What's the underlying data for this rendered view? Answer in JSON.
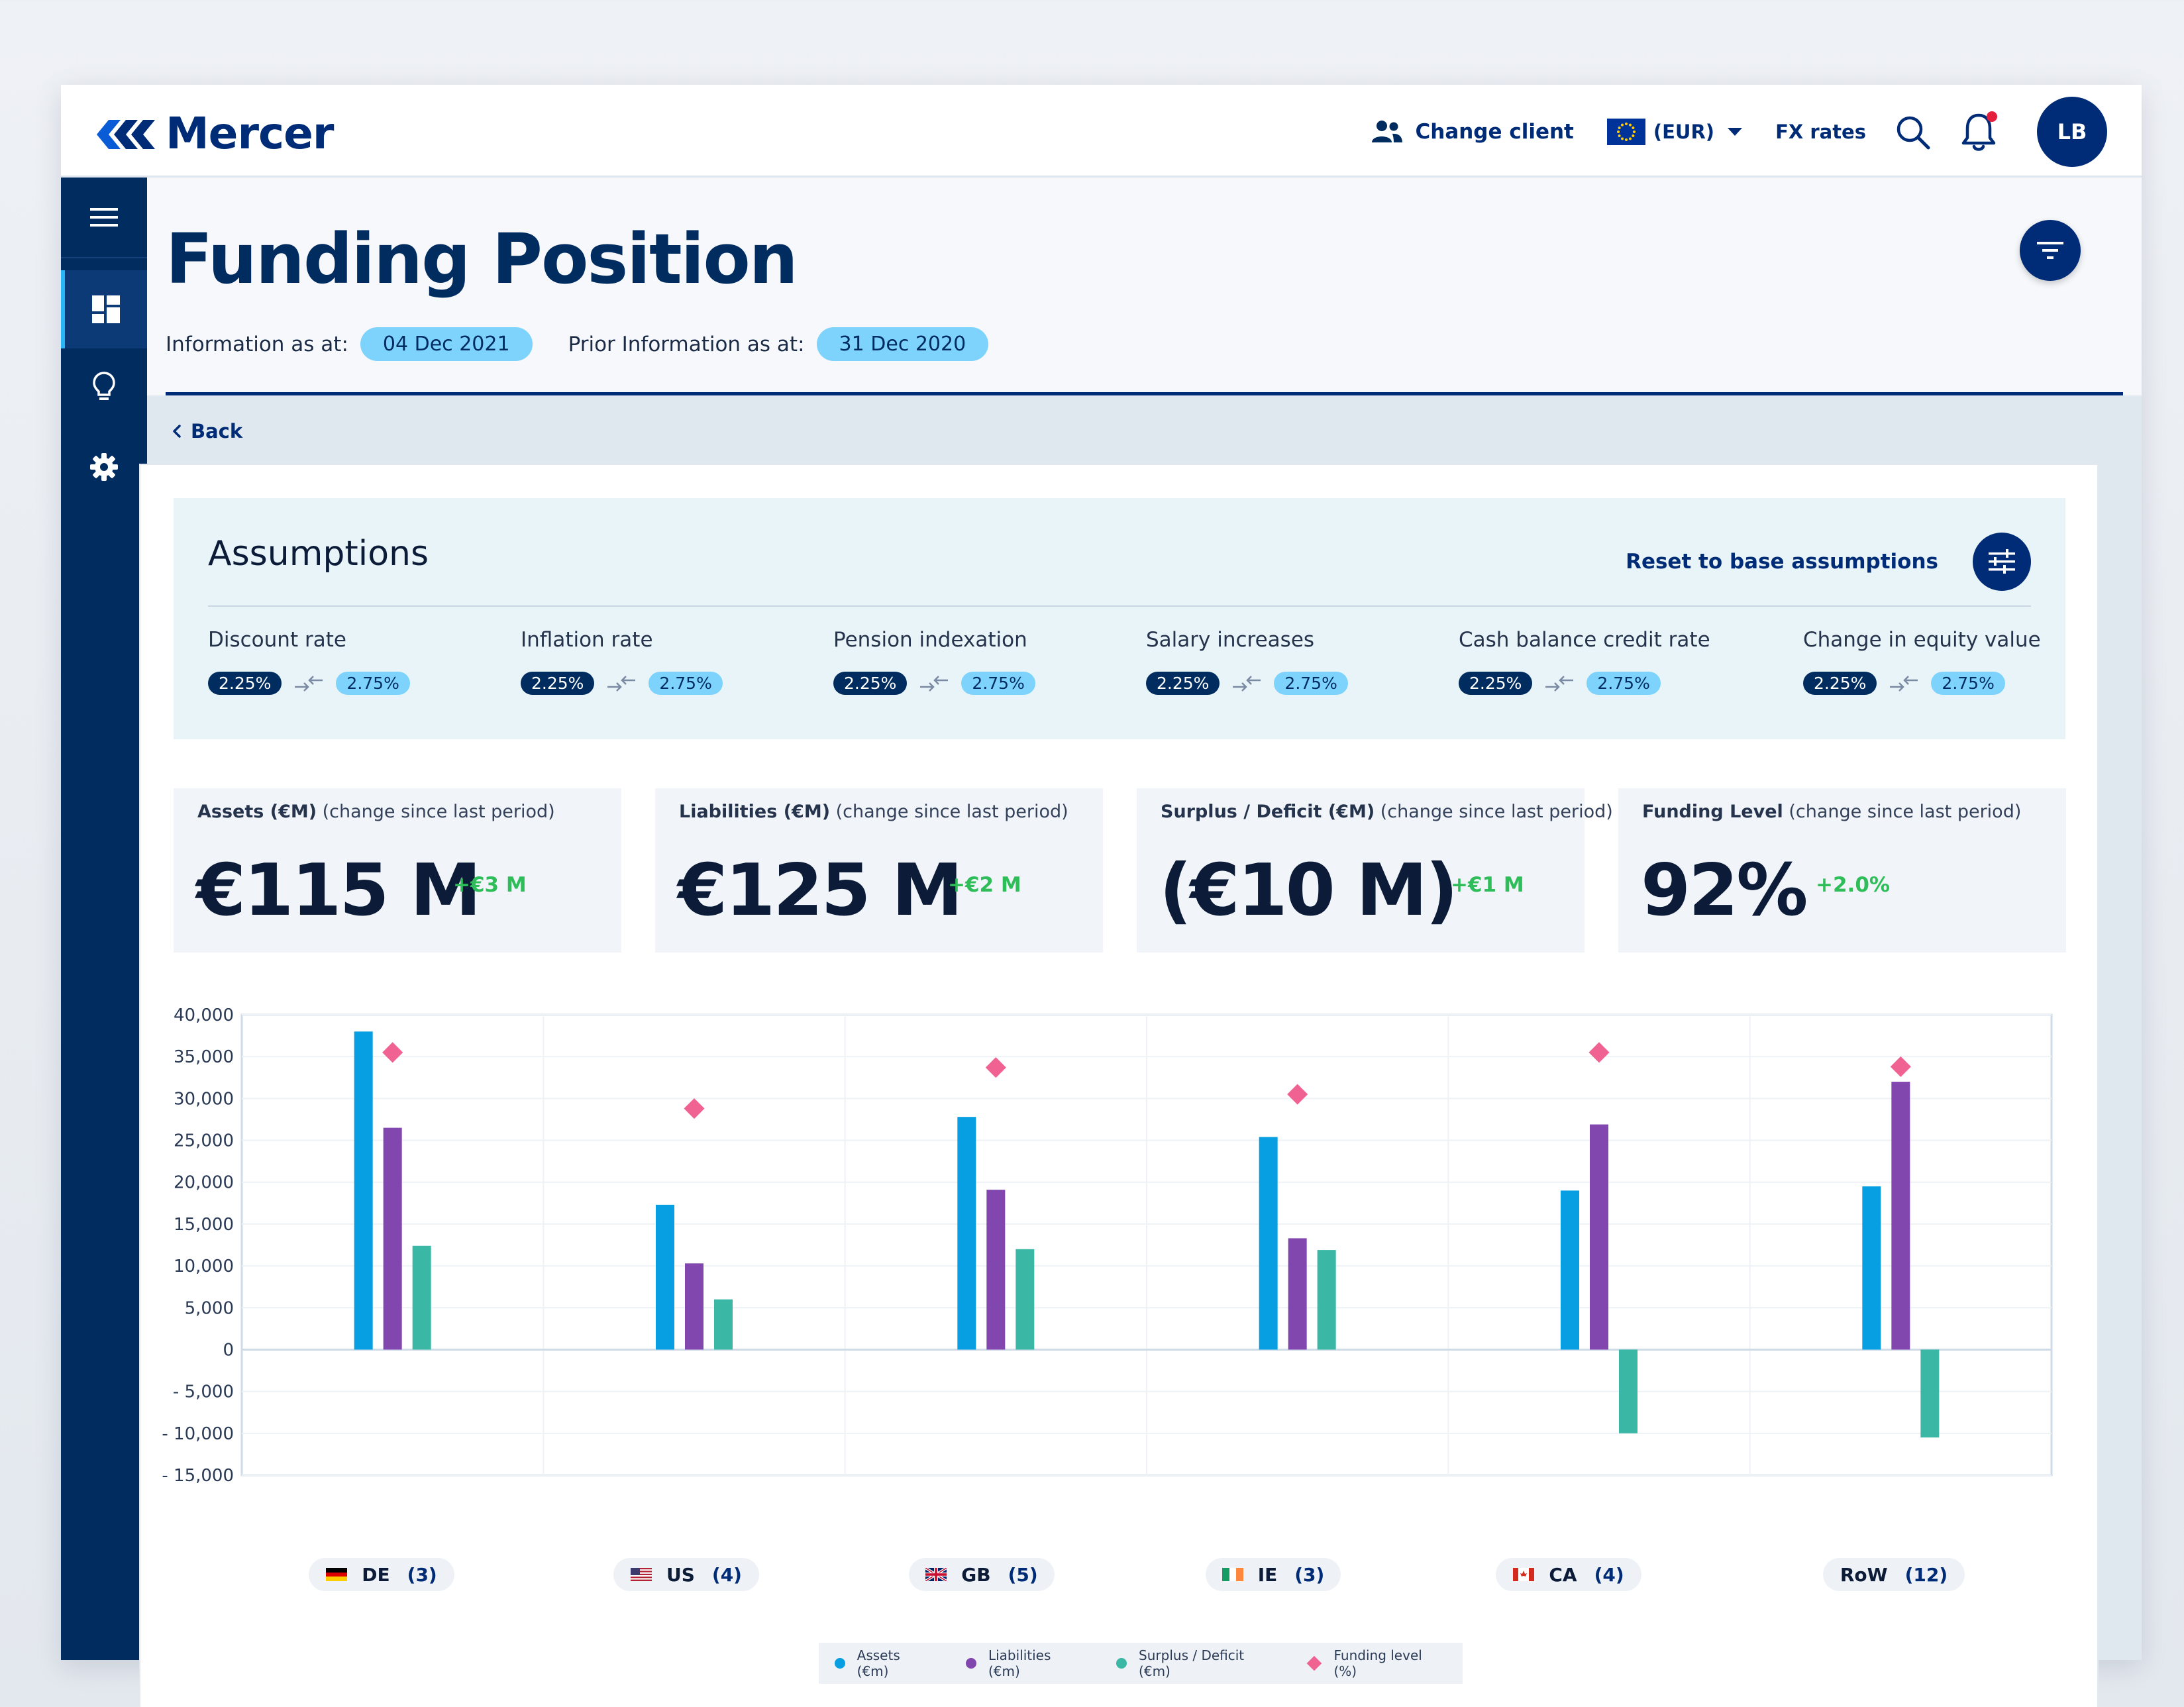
{
  "app": {
    "logo_text": "Mercer"
  },
  "topbar": {
    "change_client": "Change client",
    "currency": "(EUR)",
    "fx_rates": "FX rates",
    "avatar_initials": "LB",
    "notification_dot_color": "#e41f3c"
  },
  "sidebar": {
    "items": [
      "menu-icon",
      "dashboard-icon",
      "lightbulb-icon",
      "gear-icon"
    ]
  },
  "page": {
    "title": "Funding Position",
    "info_label": "Information as at:",
    "info_date": "04 Dec 2021",
    "prior_label": "Prior Information as at:",
    "prior_date": "31 Dec 2020",
    "back": "Back"
  },
  "assumptions": {
    "title": "Assumptions",
    "reset_label": "Reset to base assumptions",
    "items": [
      {
        "label": "Discount rate",
        "old": "2.25%",
        "new": "2.75%"
      },
      {
        "label": "Inflation rate",
        "old": "2.25%",
        "new": "2.75%"
      },
      {
        "label": "Pension indexation",
        "old": "2.25%",
        "new": "2.75%"
      },
      {
        "label": "Salary increases",
        "old": "2.25%",
        "new": "2.75%"
      },
      {
        "label": "Cash balance credit rate",
        "old": "2.25%",
        "new": "2.75%"
      },
      {
        "label": "Change in equity value",
        "old": "2.25%",
        "new": "2.75%"
      }
    ]
  },
  "kpis": [
    {
      "label": "Assets (€M)",
      "sub": " (change since last period)",
      "value": "€115 M",
      "delta": "+€3 M"
    },
    {
      "label": "Liabilities (€M)",
      "sub": " (change since last period)",
      "value": "€125 M",
      "delta": "+€2 M"
    },
    {
      "label": "Surplus / Deficit (€M)",
      "sub": " (change since last period)",
      "value": "(€10 M)",
      "delta": "+€1 M"
    },
    {
      "label": "Funding Level",
      "sub": " (change since last period)",
      "value": "92%",
      "delta": "+2.0%"
    }
  ],
  "chart_data": {
    "type": "bar",
    "categories": [
      "DE",
      "US",
      "GB",
      "IE",
      "CA",
      "RoW"
    ],
    "category_counts": [
      "(3)",
      "(4)",
      "(5)",
      "(3)",
      "(4)",
      "(12)"
    ],
    "y_ticks": [
      "40,000",
      "35,000",
      "30,000",
      "25,000",
      "20,000",
      "15,000",
      "10,000",
      "5,000",
      "0",
      "- 5,000",
      "- 10,000",
      "- 15,000"
    ],
    "ylim": [
      -15000,
      40000
    ],
    "grid": true,
    "legend_position": "bottom",
    "series": [
      {
        "name": "Assets (€m)",
        "color": "#079fe2",
        "values": [
          38000,
          17300,
          27800,
          25400,
          19000,
          19500
        ]
      },
      {
        "name": "Liabilities (€m)",
        "color": "#8246af",
        "values": [
          26500,
          10300,
          19100,
          13300,
          26900,
          32000
        ]
      },
      {
        "name": "Surplus / Deficit (€m)",
        "color": "#3bb8a5",
        "values": [
          12400,
          6000,
          12000,
          11900,
          -10000,
          -10500
        ]
      },
      {
        "name": "Funding level (%)",
        "color": "#f06292",
        "marker": "diamond",
        "values": [
          35500,
          28800,
          33700,
          30500,
          35500,
          33800
        ]
      }
    ]
  }
}
